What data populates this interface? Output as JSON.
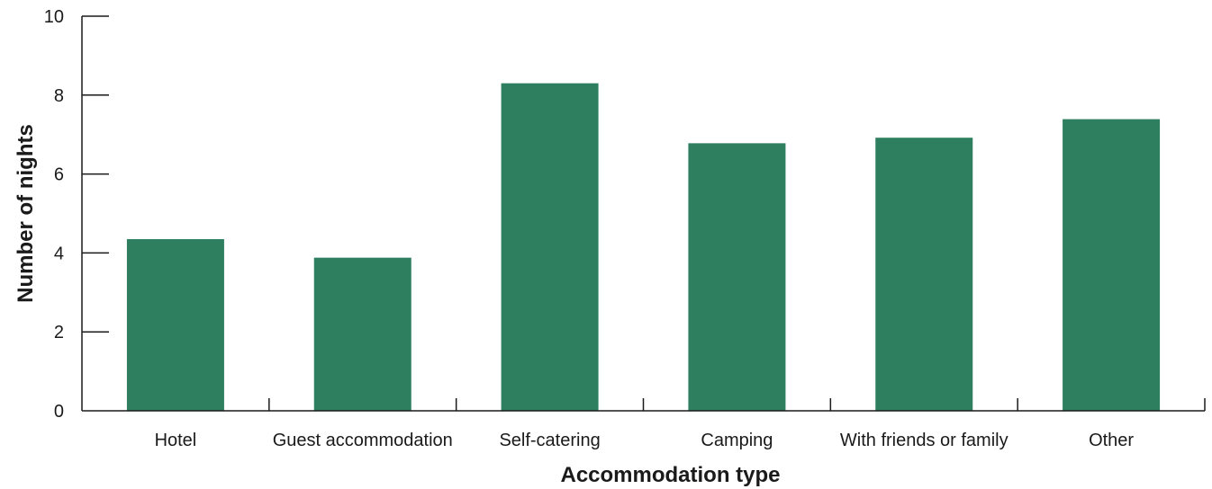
{
  "chart_data": {
    "type": "bar",
    "title": "",
    "xlabel": "Accommodation type",
    "ylabel": "Number of nights",
    "categories": [
      "Hotel",
      "Guest accommodation",
      "Self-catering",
      "Camping",
      "With friends or family",
      "Other"
    ],
    "values": [
      4.35,
      3.88,
      8.3,
      6.78,
      6.92,
      7.39
    ],
    "ylim": [
      0,
      10
    ],
    "yticks": [
      0,
      2,
      4,
      6,
      8,
      10
    ],
    "grid": false,
    "bar_color": "#2e7f5f",
    "axis_color": "#1a1a1a"
  }
}
